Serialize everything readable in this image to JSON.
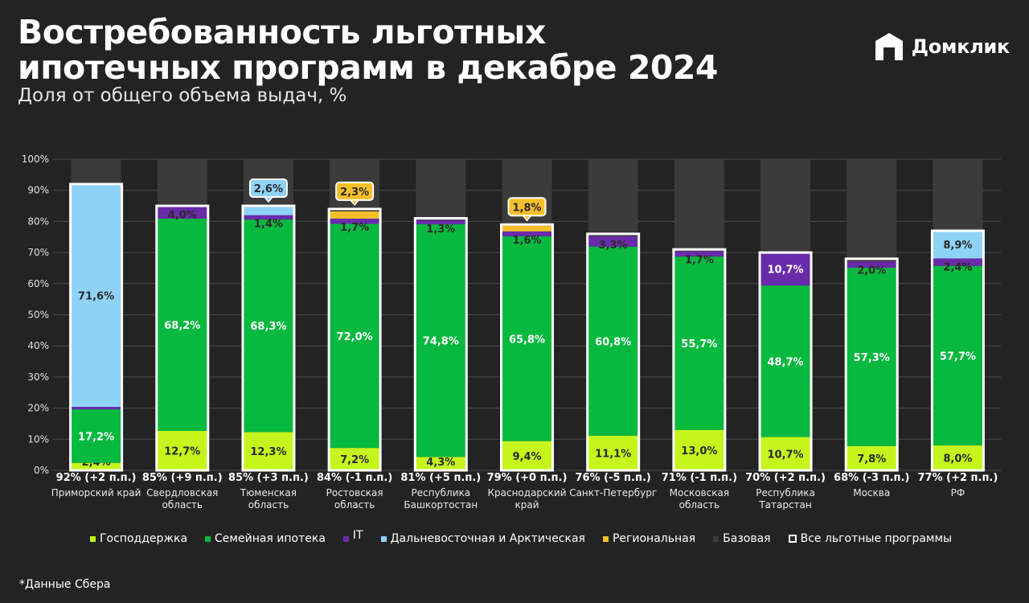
{
  "title_line1": "Востребованность льготных",
  "title_line2": "ипотечных программ в декабре 2024",
  "subtitle": "Доля от общего объема выдач, %",
  "logo": {
    "icon": "house-icon",
    "text": "Домклик"
  },
  "footnote": "*Данные Сбера",
  "colors": {
    "gosp": "#c5f51d",
    "family": "#08b93f",
    "it": "#6a2bab",
    "far_east": "#8fd2f8",
    "regional": "#f7bf2a",
    "base": "#3b3b3b",
    "background": "#232323",
    "total_border": "#ffffff"
  },
  "chart_data": {
    "type": "bar",
    "stacked": true,
    "title": "Востребованность льготных ипотечных программ в декабре 2024",
    "subtitle": "Доля от общего объема выдач, %",
    "ylim": [
      0,
      100
    ],
    "yticks": [
      "0%",
      "10%",
      "20%",
      "30%",
      "40%",
      "50%",
      "60%",
      "70%",
      "80%",
      "90%",
      "100%"
    ],
    "legend_position": "bottom",
    "legend": [
      {
        "key": "gosp",
        "label": "Господдержка"
      },
      {
        "key": "family",
        "label": "Семейная ипотека"
      },
      {
        "key": "it",
        "label": "IT"
      },
      {
        "key": "far_east",
        "label": "Дальневосточная и Арктическая"
      },
      {
        "key": "regional",
        "label": "Региональная"
      },
      {
        "key": "base",
        "label": "Базовая"
      },
      {
        "key": "total",
        "label": "Все льготные программы"
      }
    ],
    "categories": [
      {
        "label": [
          "Приморский край"
        ],
        "total": 92,
        "total_label": "92% (+2 п.п.)",
        "segments": [
          {
            "key": "gosp",
            "value": 2.4,
            "label": "2,4%"
          },
          {
            "key": "family",
            "value": 17.2,
            "label": "17,2%"
          },
          {
            "key": "it",
            "value": 0.8
          },
          {
            "key": "far_east",
            "value": 71.6,
            "label": "71,6%"
          }
        ]
      },
      {
        "label": [
          "Свердловская",
          "область"
        ],
        "total": 85,
        "total_label": "85% (+9 п.п.)",
        "segments": [
          {
            "key": "gosp",
            "value": 12.7,
            "label": "12,7%"
          },
          {
            "key": "family",
            "value": 68.2,
            "label": "68,2%"
          },
          {
            "key": "it",
            "value": 4.0,
            "label": "4,0%"
          }
        ]
      },
      {
        "label": [
          "Тюменская",
          "область"
        ],
        "total": 85,
        "total_label": "85% (+3 п.п.)",
        "segments": [
          {
            "key": "gosp",
            "value": 12.3,
            "label": "12,3%"
          },
          {
            "key": "family",
            "value": 68.3,
            "label": "68,3%"
          },
          {
            "key": "it",
            "value": 1.4,
            "label": "1,4%"
          },
          {
            "key": "far_east",
            "value": 2.6,
            "label": "2,6%",
            "callout": true
          }
        ]
      },
      {
        "label": [
          "Ростовская",
          "область"
        ],
        "total": 84,
        "total_label": "84% (-1 п.п.)",
        "segments": [
          {
            "key": "gosp",
            "value": 7.2,
            "label": "7,2%"
          },
          {
            "key": "family",
            "value": 72.0,
            "label": "72,0%"
          },
          {
            "key": "it",
            "value": 1.7,
            "label": "1,7%"
          },
          {
            "key": "regional",
            "value": 2.3,
            "label": "2,3%",
            "callout": true
          }
        ]
      },
      {
        "label": [
          "Республика",
          "Башкортостан"
        ],
        "total": 81,
        "total_label": "81% (+5 п.п.)",
        "segments": [
          {
            "key": "gosp",
            "value": 4.3,
            "label": "4,3%"
          },
          {
            "key": "family",
            "value": 74.8,
            "label": "74,8%"
          },
          {
            "key": "it",
            "value": 1.3,
            "label": "1,3%"
          }
        ]
      },
      {
        "label": [
          "Краснодарский",
          "край"
        ],
        "total": 79,
        "total_label": "79% (+0 п.п.)",
        "segments": [
          {
            "key": "gosp",
            "value": 9.4,
            "label": "9,4%"
          },
          {
            "key": "family",
            "value": 65.8,
            "label": "65,8%"
          },
          {
            "key": "it",
            "value": 1.6,
            "label": "1,6%"
          },
          {
            "key": "regional",
            "value": 1.8,
            "label": "1,8%",
            "callout": true
          }
        ]
      },
      {
        "label": [
          "Санкт-Петербург"
        ],
        "total": 76,
        "total_label": "76% (-5 п.п.)",
        "segments": [
          {
            "key": "gosp",
            "value": 11.1,
            "label": "11,1%"
          },
          {
            "key": "family",
            "value": 60.8,
            "label": "60,8%"
          },
          {
            "key": "it",
            "value": 3.3,
            "label": "3,3%"
          }
        ]
      },
      {
        "label": [
          "Московская",
          "область"
        ],
        "total": 71,
        "total_label": "71% (-1 п.п.)",
        "segments": [
          {
            "key": "gosp",
            "value": 13.0,
            "label": "13,0%"
          },
          {
            "key": "family",
            "value": 55.7,
            "label": "55,7%"
          },
          {
            "key": "it",
            "value": 1.7,
            "label": "1,7%"
          }
        ]
      },
      {
        "label": [
          "Республика",
          "Татарстан"
        ],
        "total": 70,
        "total_label": "70% (+2 п.п.)",
        "segments": [
          {
            "key": "gosp",
            "value": 10.7,
            "label": "10,7%"
          },
          {
            "key": "family",
            "value": 48.7,
            "label": "48,7%"
          },
          {
            "key": "it",
            "value": 10.7,
            "label": "10,7%"
          }
        ]
      },
      {
        "label": [
          "Москва"
        ],
        "total": 68,
        "total_label": "68% (-3 п.п.)",
        "segments": [
          {
            "key": "gosp",
            "value": 7.8,
            "label": "7,8%"
          },
          {
            "key": "family",
            "value": 57.3,
            "label": "57,3%"
          },
          {
            "key": "it",
            "value": 2.0,
            "label": "2,0%"
          }
        ]
      },
      {
        "label": [
          "РФ"
        ],
        "total": 77,
        "total_label": "77% (+2 п.п.)",
        "segments": [
          {
            "key": "gosp",
            "value": 8.0,
            "label": "8,0%"
          },
          {
            "key": "family",
            "value": 57.7,
            "label": "57,7%"
          },
          {
            "key": "it",
            "value": 2.4,
            "label": "2,4%"
          },
          {
            "key": "far_east",
            "value": 8.9,
            "label": "8,9%"
          }
        ]
      }
    ]
  }
}
